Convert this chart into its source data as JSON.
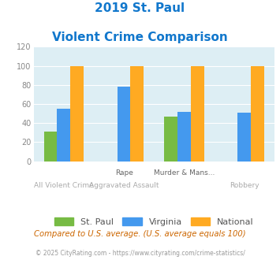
{
  "title_line1": "2019 St. Paul",
  "title_line2": "Violent Crime Comparison",
  "groups": [
    "St. Paul",
    "Virginia",
    "National"
  ],
  "values": [
    [
      31,
      0,
      47,
      0
    ],
    [
      55,
      78,
      52,
      51
    ],
    [
      100,
      100,
      100,
      100
    ]
  ],
  "bar_colors": [
    "#77bb44",
    "#4499ee",
    "#ffaa22"
  ],
  "bg_color": "#ddeef4",
  "title_color": "#1177cc",
  "ylim": [
    0,
    120
  ],
  "yticks": [
    0,
    20,
    40,
    60,
    80,
    100,
    120
  ],
  "top_labels": [
    "",
    "Rape",
    "Murder & Mans...",
    ""
  ],
  "bot_labels": [
    "All Violent Crime",
    "Aggravated Assault",
    "",
    "Robbery"
  ],
  "footnote": "Compared to U.S. average. (U.S. average equals 100)",
  "footnote2": "© 2025 CityRating.com - https://www.cityrating.com/crime-statistics/",
  "footnote_color": "#cc6600",
  "footnote2_color": "#999999",
  "tick_color": "#888888"
}
